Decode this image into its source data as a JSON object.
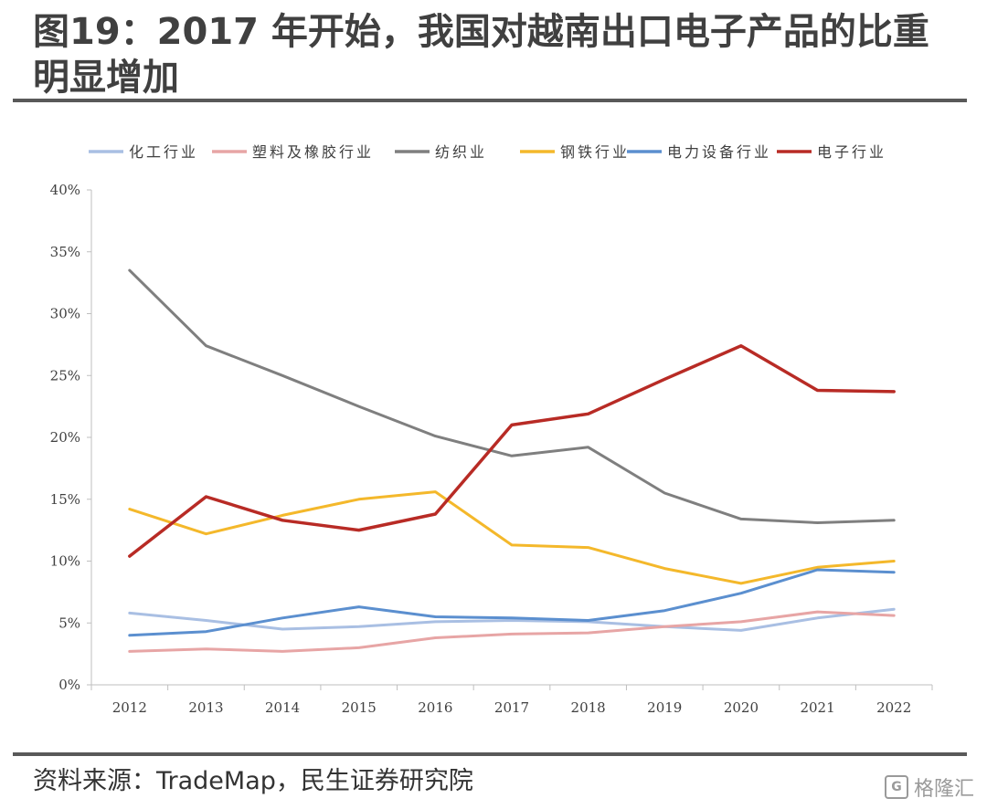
{
  "title": "图19：2017 年开始，我国对越南出口电子产品的比重明显增加",
  "source": "资料来源：TradeMap，民生证券研究院",
  "watermark": "格隆汇",
  "chart_data": {
    "type": "line",
    "title": "",
    "xlabel": "",
    "ylabel": "",
    "x": [
      "2012",
      "2013",
      "2014",
      "2015",
      "2016",
      "2017",
      "2018",
      "2019",
      "2020",
      "2021",
      "2022"
    ],
    "ylim": [
      0,
      40
    ],
    "yticks": [
      "0%",
      "5%",
      "10%",
      "15%",
      "20%",
      "25%",
      "30%",
      "35%",
      "40%"
    ],
    "legend": "top",
    "grid": false,
    "series": [
      {
        "name": "化工行业",
        "color": "#a9bfe3",
        "values": [
          5.8,
          5.2,
          4.5,
          4.7,
          5.1,
          5.2,
          5.1,
          4.7,
          4.4,
          5.4,
          6.1
        ]
      },
      {
        "name": "塑料及橡胶行业",
        "color": "#e7a5a5",
        "values": [
          2.7,
          2.9,
          2.7,
          3.0,
          3.8,
          4.1,
          4.2,
          4.7,
          5.1,
          5.9,
          5.6
        ]
      },
      {
        "name": "纺织业",
        "color": "#7f7f7f",
        "values": [
          33.5,
          27.4,
          25.0,
          22.5,
          20.1,
          18.5,
          19.2,
          15.5,
          13.4,
          13.1,
          13.3
        ]
      },
      {
        "name": "钢铁行业",
        "color": "#f4b82b",
        "values": [
          14.2,
          12.2,
          13.7,
          15.0,
          15.6,
          11.3,
          11.1,
          9.4,
          8.2,
          9.5,
          10.0
        ]
      },
      {
        "name": "电力设备行业",
        "color": "#5b8fcf",
        "values": [
          4.0,
          4.3,
          5.4,
          6.3,
          5.5,
          5.4,
          5.2,
          6.0,
          7.4,
          9.3,
          9.1
        ]
      },
      {
        "name": "电子行业",
        "color": "#b82b25",
        "values": [
          10.4,
          15.2,
          13.3,
          12.5,
          13.8,
          21.0,
          21.9,
          24.7,
          27.4,
          23.8,
          23.7
        ]
      }
    ]
  }
}
